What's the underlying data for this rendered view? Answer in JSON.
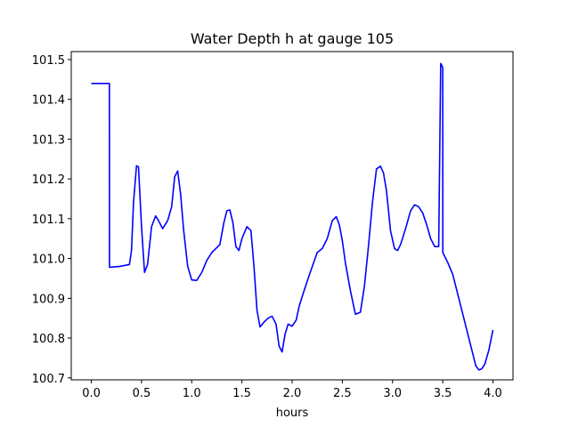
{
  "chart_data": {
    "type": "line",
    "title": "Water Depth h at gauge 105",
    "xlabel": "hours",
    "ylabel": "",
    "xlim": [
      -0.2,
      4.2
    ],
    "ylim": [
      100.695,
      101.52
    ],
    "xticks": [
      0.0,
      0.5,
      1.0,
      1.5,
      2.0,
      2.5,
      3.0,
      3.5,
      4.0
    ],
    "xtick_labels": [
      "0.0",
      "0.5",
      "1.0",
      "1.5",
      "2.0",
      "2.5",
      "3.0",
      "3.5",
      "4.0"
    ],
    "yticks": [
      100.7,
      100.8,
      100.9,
      101.0,
      101.1,
      101.2,
      101.3,
      101.4,
      101.5
    ],
    "ytick_labels": [
      "100.7",
      "100.8",
      "100.9",
      "101.0",
      "101.1",
      "101.2",
      "101.3",
      "101.4",
      "101.5"
    ],
    "grid": false,
    "series": [
      {
        "color": "#0000ff",
        "x": [
          0.0,
          0.18,
          0.181,
          0.28,
          0.38,
          0.4,
          0.42,
          0.45,
          0.47,
          0.5,
          0.53,
          0.56,
          0.6,
          0.64,
          0.67,
          0.71,
          0.76,
          0.8,
          0.83,
          0.86,
          0.89,
          0.92,
          0.96,
          1.0,
          1.05,
          1.1,
          1.15,
          1.2,
          1.24,
          1.28,
          1.32,
          1.35,
          1.38,
          1.41,
          1.44,
          1.47,
          1.5,
          1.55,
          1.59,
          1.62,
          1.65,
          1.68,
          1.72,
          1.76,
          1.8,
          1.84,
          1.87,
          1.9,
          1.93,
          1.96,
          2.0,
          2.04,
          2.07,
          2.12,
          2.18,
          2.25,
          2.3,
          2.35,
          2.4,
          2.44,
          2.47,
          2.5,
          2.53,
          2.58,
          2.63,
          2.68,
          2.72,
          2.76,
          2.8,
          2.84,
          2.88,
          2.91,
          2.94,
          2.98,
          3.02,
          3.05,
          3.08,
          3.13,
          3.18,
          3.22,
          3.26,
          3.3,
          3.34,
          3.38,
          3.42,
          3.46,
          3.48,
          3.481,
          3.5,
          3.501,
          3.55,
          3.6,
          3.65,
          3.7,
          3.75,
          3.8,
          3.83,
          3.86,
          3.89,
          3.92,
          3.96,
          4.0
        ],
        "y": [
          101.44,
          101.44,
          100.978,
          100.98,
          100.985,
          101.02,
          101.14,
          101.233,
          101.23,
          101.08,
          100.965,
          100.985,
          101.08,
          101.107,
          101.095,
          101.075,
          101.095,
          101.13,
          101.205,
          101.22,
          101.16,
          101.07,
          100.98,
          100.946,
          100.945,
          100.965,
          100.995,
          101.015,
          101.025,
          101.035,
          101.09,
          101.12,
          101.122,
          101.09,
          101.03,
          101.02,
          101.05,
          101.08,
          101.07,
          100.98,
          100.87,
          100.828,
          100.84,
          100.85,
          100.855,
          100.835,
          100.78,
          100.765,
          100.81,
          100.835,
          100.83,
          100.845,
          100.88,
          100.92,
          100.965,
          101.015,
          101.025,
          101.05,
          101.095,
          101.105,
          101.085,
          101.045,
          100.99,
          100.92,
          100.86,
          100.865,
          100.93,
          101.03,
          101.14,
          101.225,
          101.232,
          101.215,
          101.17,
          101.07,
          101.025,
          101.02,
          101.035,
          101.075,
          101.12,
          101.135,
          101.13,
          101.115,
          101.085,
          101.05,
          101.03,
          101.03,
          101.49,
          101.49,
          101.48,
          101.015,
          100.99,
          100.96,
          100.91,
          100.86,
          100.81,
          100.76,
          100.73,
          100.72,
          100.723,
          100.735,
          100.77,
          100.82
        ]
      }
    ]
  }
}
